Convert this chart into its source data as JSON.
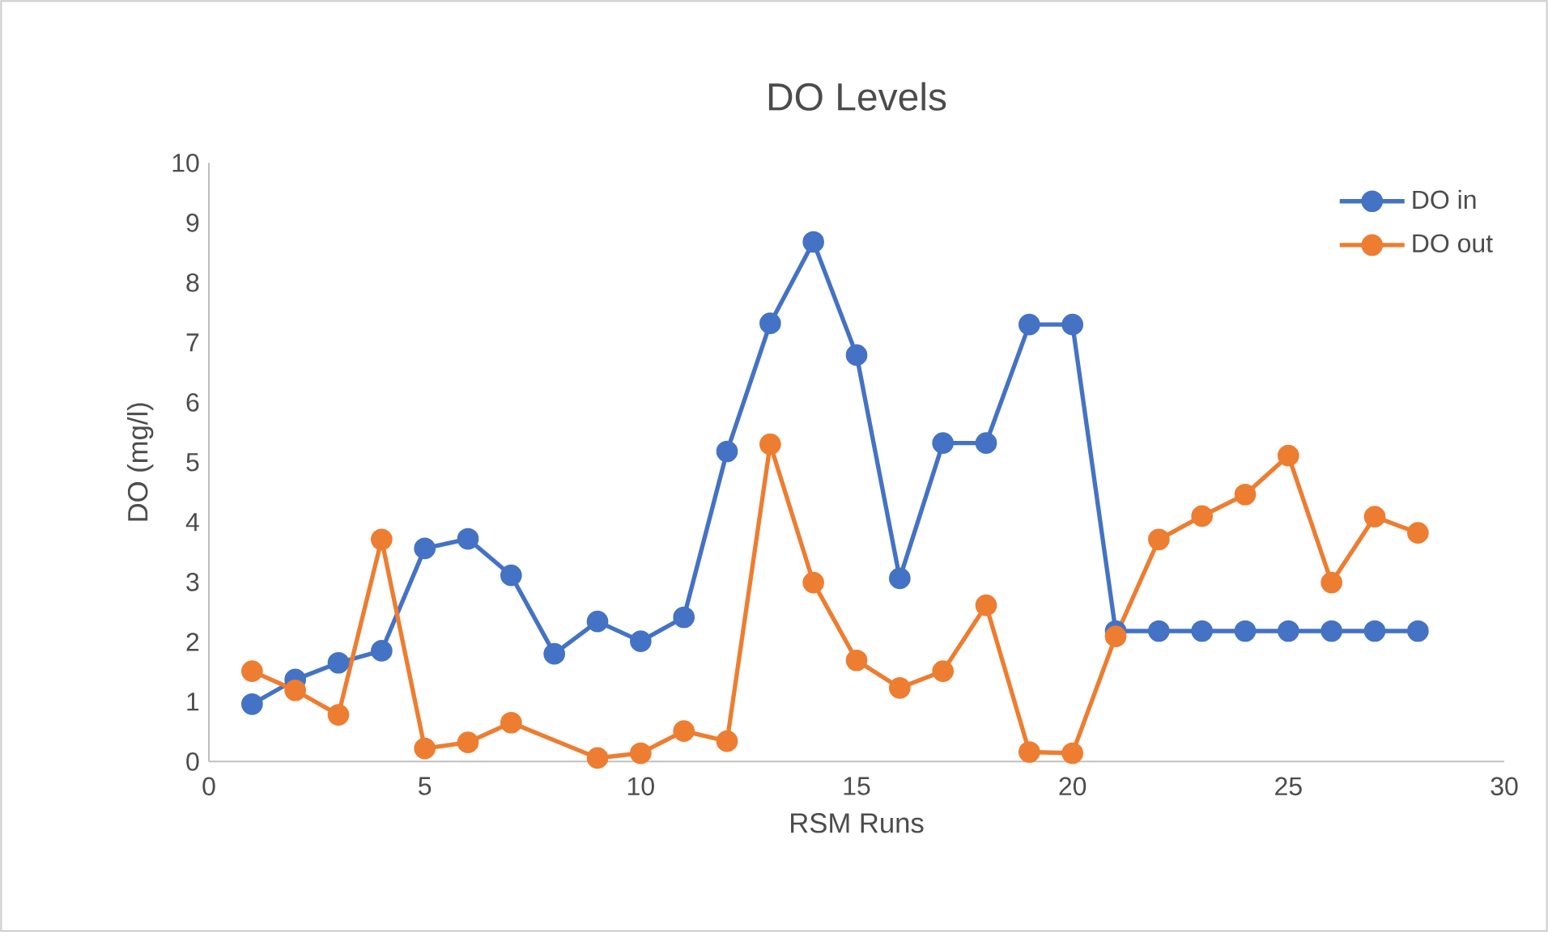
{
  "chart_data": {
    "type": "line",
    "title": "DO Levels",
    "xlabel": "RSM Runs",
    "ylabel": "DO (mg/l)",
    "x": [
      1,
      2,
      3,
      4,
      5,
      6,
      7,
      8,
      9,
      10,
      11,
      12,
      13,
      14,
      15,
      16,
      17,
      18,
      19,
      20,
      21,
      22,
      23,
      24,
      25,
      26,
      27,
      28
    ],
    "series": [
      {
        "name": "DO in",
        "color": "#4472c4",
        "values": [
          0.96,
          1.37,
          1.65,
          1.85,
          3.56,
          3.72,
          3.11,
          1.8,
          2.34,
          2.01,
          2.41,
          5.18,
          7.32,
          8.68,
          6.79,
          3.06,
          5.32,
          5.32,
          7.3,
          7.3,
          2.18,
          2.18,
          2.18,
          2.18,
          2.18,
          2.18,
          2.18,
          2.18
        ]
      },
      {
        "name": "DO out",
        "color": "#ed7d31",
        "values": [
          1.51,
          1.19,
          0.78,
          3.71,
          0.22,
          0.32,
          0.65,
          null,
          0.06,
          0.14,
          0.51,
          0.34,
          5.3,
          2.99,
          1.69,
          1.23,
          1.51,
          2.61,
          0.16,
          0.14,
          2.09,
          3.71,
          4.1,
          4.46,
          5.11,
          2.99,
          4.09,
          3.82
        ]
      }
    ],
    "xlim": [
      0,
      30
    ],
    "xticks": [
      0,
      5,
      10,
      15,
      20,
      25,
      30
    ],
    "ylim": [
      0,
      10
    ],
    "yticks": [
      0,
      1,
      2,
      3,
      4,
      5,
      6,
      7,
      8,
      9,
      10
    ],
    "grid": false,
    "legend": "top right",
    "marker": "circle",
    "line_style": "solid"
  }
}
